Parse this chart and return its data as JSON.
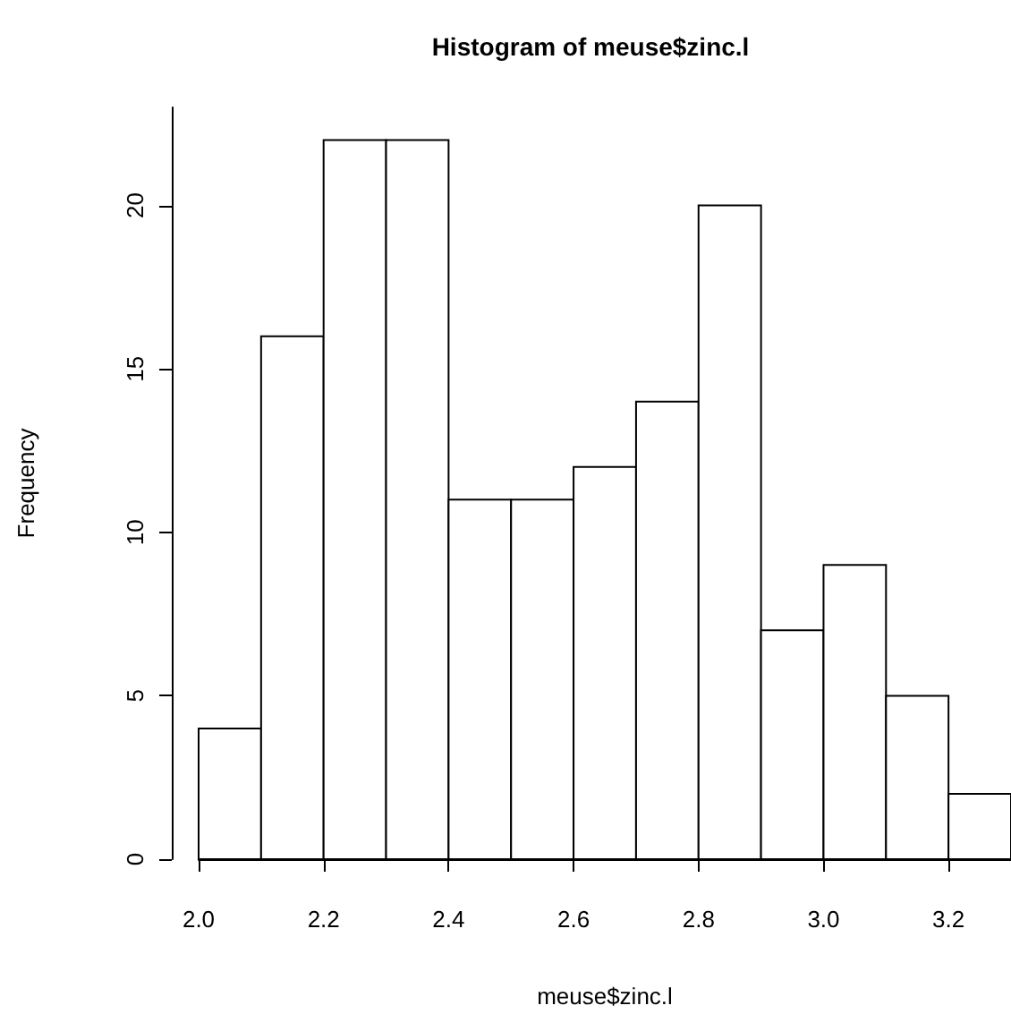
{
  "chart_data": {
    "type": "histogram",
    "title": "Histogram of meuse$zinc.l",
    "xlabel": "meuse$zinc.l",
    "ylabel": "Frequency",
    "bins": [
      2.0,
      2.1,
      2.2,
      2.3,
      2.4,
      2.5,
      2.6,
      2.7,
      2.8,
      2.9,
      3.0,
      3.1,
      3.2,
      3.3
    ],
    "values": [
      4,
      16,
      22,
      22,
      11,
      11,
      12,
      14,
      20,
      7,
      9,
      5,
      2
    ],
    "color": "#ffffff",
    "xlim": [
      2.0,
      3.3
    ],
    "xticks": [
      {
        "value": 2.0,
        "label": "2.0"
      },
      {
        "value": 2.2,
        "label": "2.2"
      },
      {
        "value": 2.4,
        "label": "2.4"
      },
      {
        "value": 2.6,
        "label": "2.6"
      },
      {
        "value": 2.8,
        "label": "2.8"
      },
      {
        "value": 3.0,
        "label": "3.0"
      },
      {
        "value": 3.2,
        "label": "3.2"
      }
    ],
    "ylim": [
      0,
      23
    ],
    "yticks": [
      0,
      5,
      10,
      15,
      20
    ],
    "grid": false
  }
}
